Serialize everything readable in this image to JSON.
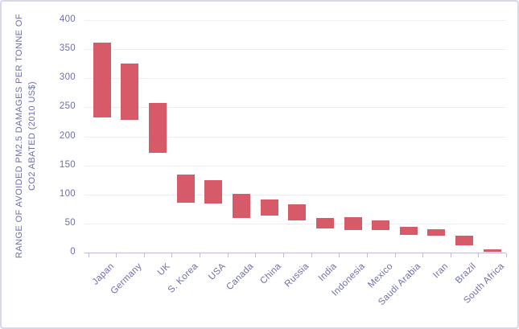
{
  "chart_data": {
    "type": "bar",
    "subtype": "floating-range-bars",
    "title": "",
    "xlabel": "",
    "ylabel": "RANGE OF AVOIDED PM2.5 DAMAGES PER TONNE OF CO2 ABATED (2010 US$)",
    "ylabel_lines": [
      "RANGE OF AVOIDED PM2.5 DAMAGES PER TONNE OF",
      "CO2 ABATED (2010 US$)"
    ],
    "ylim": [
      0,
      400
    ],
    "ytick_step": 50,
    "yticks": [
      0,
      50,
      100,
      150,
      200,
      250,
      300,
      350,
      400
    ],
    "grid": "horizontal",
    "legend": "none",
    "bar_color": "#d65a68",
    "axis_text_color": "#6f6ea9",
    "categories": [
      "Japan",
      "Germany",
      "UK",
      "S. Korea",
      "USA",
      "Canada",
      "China",
      "Russia",
      "India",
      "Indonesia",
      "Mexico",
      "Saudi Arabia",
      "Iran",
      "Brazil",
      "South Africa"
    ],
    "series": [
      {
        "name": "Range of avoided PM2.5 damages",
        "ranges": [
          [
            232,
            361
          ],
          [
            228,
            326
          ],
          [
            172,
            257
          ],
          [
            86,
            135
          ],
          [
            85,
            124
          ],
          [
            59,
            101
          ],
          [
            64,
            91
          ],
          [
            56,
            83
          ],
          [
            41,
            59
          ],
          [
            39,
            61
          ],
          [
            39,
            55
          ],
          [
            31,
            45
          ],
          [
            29,
            40
          ],
          [
            12,
            29
          ],
          [
            1,
            5
          ]
        ]
      }
    ]
  }
}
